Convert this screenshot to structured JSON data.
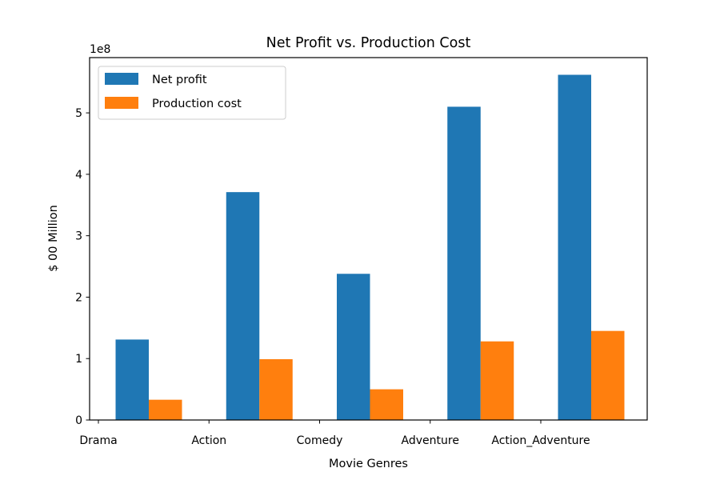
{
  "chart_data": {
    "type": "bar",
    "title": "Net Profit vs. Production Cost",
    "xlabel": "Movie Genres",
    "ylabel": "$ 00 Million",
    "y_offset_label": "1e8",
    "categories": [
      "Drama",
      "Action",
      "Comedy",
      "Adventure",
      "Action_Adventure"
    ],
    "series": [
      {
        "name": "Net profit",
        "color": "#1f77b4",
        "values": [
          131000000,
          371000000,
          238000000,
          510000000,
          562000000
        ]
      },
      {
        "name": "Production cost",
        "color": "#ff7f0e",
        "values": [
          33000000,
          99000000,
          50000000,
          128000000,
          145000000
        ]
      }
    ],
    "ylim": [
      0,
      590000000
    ],
    "yticks": [
      0,
      100000000,
      200000000,
      300000000,
      400000000,
      500000000
    ],
    "ytick_labels": [
      "0",
      "1",
      "2",
      "3",
      "4",
      "5"
    ],
    "grid": false,
    "legend_position": "top-left"
  }
}
